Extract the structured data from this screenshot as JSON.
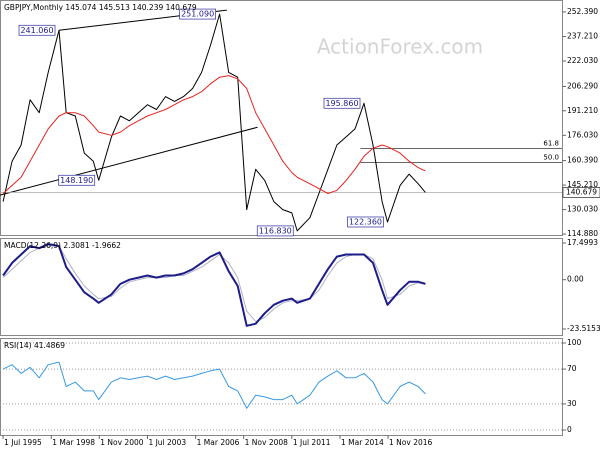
{
  "chart_data": [
    {
      "type": "line",
      "title": "GBPJPY,Monthly  145.074 145.513 140.239 140.679",
      "watermark": "ActionForex.com",
      "x": [
        1995.5,
        1996,
        1996.5,
        1997,
        1997.5,
        1998,
        1998.6,
        1999,
        1999.5,
        2000,
        2000.5,
        2000.8,
        2001.5,
        2002,
        2002.5,
        2003,
        2003.5,
        2004,
        2004.5,
        2005,
        2005.5,
        2006,
        2006.5,
        2007,
        2007.5,
        2008,
        2008.5,
        2009,
        2009.5,
        2010,
        2010.5,
        2011,
        2011.5,
        2011.8,
        2012.5,
        2013,
        2013.5,
        2014,
        2014.5,
        2015,
        2015.5,
        2016,
        2016.5,
        2016.8,
        2017.5,
        2018,
        2018.5,
        2018.9
      ],
      "series": [
        {
          "name": "GBPJPY",
          "color": "#000000",
          "values": [
            135,
            160,
            170,
            198,
            190,
            215,
            241.06,
            190,
            188,
            165,
            160,
            148.19,
            175,
            188,
            185,
            190,
            195,
            192,
            200,
            197,
            200,
            205,
            215,
            232,
            251.09,
            215,
            212,
            130,
            155,
            148,
            135,
            130,
            128,
            116.83,
            125,
            140,
            155,
            170,
            175,
            180,
            195.86,
            170,
            135,
            122.36,
            145,
            152,
            146,
            140.679
          ]
        },
        {
          "name": "MA",
          "color": "#e8231f",
          "values": [
            140,
            145,
            150,
            160,
            170,
            180,
            188,
            190,
            190,
            188,
            182,
            178,
            176,
            178,
            182,
            185,
            188,
            190,
            192,
            195,
            198,
            200,
            203,
            208,
            212,
            213,
            211,
            205,
            190,
            180,
            170,
            160,
            153,
            150,
            146,
            143,
            140,
            142,
            148,
            155,
            163,
            168,
            170,
            169,
            165,
            160,
            156,
            154
          ]
        }
      ],
      "annotations": [
        {
          "x": 1998.6,
          "value": 241.06,
          "label": "241.060"
        },
        {
          "x": 2007.5,
          "value": 251.09,
          "label": "251.090"
        },
        {
          "x": 2000.8,
          "value": 148.19,
          "label": "148.190"
        },
        {
          "x": 2011.8,
          "value": 116.83,
          "label": "116.830"
        },
        {
          "x": 2015.5,
          "value": 195.86,
          "label": "195.860"
        },
        {
          "x": 2016.8,
          "value": 122.36,
          "label": "122.360"
        }
      ],
      "trendlines": [
        {
          "x": [
            1998.6,
            2007.9
          ],
          "y": [
            241.06,
            253.5
          ]
        },
        {
          "x": [
            1995.33,
            2009.6
          ],
          "y": [
            139,
            181
          ]
        }
      ],
      "levels": [
        {
          "value": 167.78,
          "label": "61.8"
        },
        {
          "value": 159.11,
          "label": "50.0"
        }
      ],
      "levels_start": 2015.3,
      "last_price": 140.679,
      "xlim": [
        1995.33,
        2026.47
      ],
      "ylim": [
        114.3,
        259.8
      ],
      "yticks": [
        {
          "value": 252.39,
          "label": "252.390"
        },
        {
          "value": 237.21,
          "label": "237.210"
        },
        {
          "value": 222.03,
          "label": "222.030"
        },
        {
          "value": 206.29,
          "label": "206.290"
        },
        {
          "value": 191.21,
          "label": "191.210"
        },
        {
          "value": 176.03,
          "label": "176.030"
        },
        {
          "value": 160.39,
          "label": "160.390"
        },
        {
          "value": 145.21,
          "label": "145.210"
        },
        {
          "value": 130.03,
          "label": "130.030"
        },
        {
          "value": 114.88,
          "label": "114.880"
        }
      ],
      "grid": false
    },
    {
      "type": "line",
      "title": "MACD(12,26,9) 2.3081 -1.9662",
      "x": [
        1995.5,
        1996,
        1996.5,
        1997,
        1997.5,
        1998,
        1998.6,
        1999,
        1999.5,
        2000,
        2000.5,
        2000.8,
        2001.5,
        2002,
        2002.5,
        2003,
        2003.5,
        2004,
        2004.5,
        2005,
        2005.5,
        2006,
        2006.5,
        2007,
        2007.5,
        2008,
        2008.5,
        2009,
        2009.5,
        2010,
        2010.5,
        2011,
        2011.5,
        2011.8,
        2012.5,
        2013,
        2013.5,
        2014,
        2014.5,
        2015,
        2015.5,
        2016,
        2016.5,
        2016.8,
        2017.5,
        2018,
        2018.5,
        2018.9
      ],
      "series": [
        {
          "name": "Signal",
          "color": "#b0b0c8",
          "values": [
            1,
            5,
            9,
            13,
            15,
            16,
            16,
            10,
            3,
            -3,
            -7,
            -9,
            -8,
            -4,
            -1,
            0,
            1,
            1,
            1,
            2,
            2,
            4,
            6,
            9,
            12,
            8,
            1,
            -15,
            -20,
            -18,
            -14,
            -11,
            -10,
            -10,
            -9,
            -5,
            2,
            8,
            11,
            12,
            12,
            10,
            0,
            -9,
            -7,
            -3,
            -1.5,
            -2.3081
          ]
        },
        {
          "name": "MACD",
          "color": "#1c1c8a",
          "values": [
            2,
            8,
            12,
            16,
            15,
            17,
            16,
            6,
            0,
            -6,
            -9,
            -11,
            -7,
            -2,
            0,
            1,
            2,
            1,
            2,
            2,
            3,
            5,
            8,
            11,
            13,
            4,
            -3,
            -22,
            -21,
            -16,
            -12,
            -10,
            -9,
            -11,
            -9,
            -2,
            5,
            11,
            12,
            12,
            12,
            8,
            -5,
            -12,
            -5,
            -1,
            -1,
            -1.9662
          ]
        }
      ],
      "xlim": [
        1995.33,
        2026.47
      ],
      "ylim": [
        -26.38,
        19.88
      ],
      "yticks": [
        17.4993,
        {
          "value": 0,
          "label": "0.00"
        },
        -23.5153
      ],
      "grid": false
    },
    {
      "type": "line",
      "title": "RSI(14) 41.4869",
      "x": [
        1995.5,
        1996,
        1996.5,
        1997,
        1997.5,
        1998,
        1998.6,
        1999,
        1999.5,
        2000,
        2000.5,
        2000.8,
        2001.5,
        2002,
        2002.5,
        2003,
        2003.5,
        2004,
        2004.5,
        2005,
        2005.5,
        2006,
        2006.5,
        2007,
        2007.5,
        2008,
        2008.5,
        2009,
        2009.5,
        2010,
        2010.5,
        2011,
        2011.5,
        2011.8,
        2012.5,
        2013,
        2013.5,
        2014,
        2014.5,
        2015,
        2015.5,
        2016,
        2016.5,
        2016.8,
        2017.5,
        2018,
        2018.5,
        2018.9
      ],
      "series": [
        {
          "name": "RSI",
          "color": "#3a9ae0",
          "values": [
            70,
            75,
            65,
            72,
            60,
            75,
            78,
            50,
            55,
            45,
            45,
            35,
            55,
            60,
            58,
            60,
            62,
            58,
            62,
            58,
            60,
            62,
            65,
            68,
            70,
            50,
            45,
            25,
            40,
            38,
            35,
            35,
            40,
            30,
            40,
            55,
            62,
            68,
            60,
            60,
            65,
            55,
            35,
            30,
            50,
            55,
            50,
            41.4869
          ]
        }
      ],
      "xlim": [
        1995.33,
        2026.47
      ],
      "ylim": [
        -5.7,
        105.7
      ],
      "yticks": [
        100,
        70,
        30,
        0
      ],
      "grid": true,
      "xticks": [
        {
          "value": 1995.5,
          "label": "1 Jul 1995"
        },
        {
          "value": 1998.17,
          "label": "1 Mar 1998"
        },
        {
          "value": 2000.83,
          "label": "1 Nov 2000"
        },
        {
          "value": 2003.5,
          "label": "1 Jul 2003"
        },
        {
          "value": 2006.17,
          "label": "1 Mar 2006"
        },
        {
          "value": 2008.83,
          "label": "1 Nov 2008"
        },
        {
          "value": 2011.5,
          "label": "1 Jul 2011"
        },
        {
          "value": 2014.17,
          "label": "1 Mar 2014"
        },
        {
          "value": 2016.83,
          "label": "1 Nov 2016"
        }
      ]
    }
  ]
}
